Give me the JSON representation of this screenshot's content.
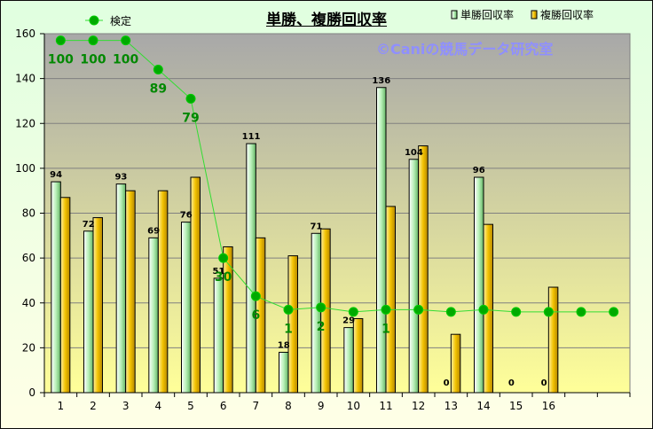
{
  "chart_data": {
    "type": "bar",
    "title": "単勝、複勝回収率",
    "watermark": "©Caniの競馬データ研究室",
    "categories": [
      "1",
      "2",
      "3",
      "4",
      "5",
      "6",
      "7",
      "8",
      "9",
      "10",
      "11",
      "12",
      "13",
      "14",
      "15",
      "16",
      "",
      ""
    ],
    "series": [
      {
        "name": "単勝回収率",
        "type": "bar",
        "color": "#b8f0b8",
        "values": [
          94,
          72,
          93,
          69,
          76,
          51,
          111,
          18,
          71,
          29,
          136,
          104,
          0,
          96,
          0,
          0,
          null,
          null
        ],
        "labels": [
          "94",
          "72",
          "93",
          "69",
          "76",
          "51",
          "111",
          "18",
          "71",
          "29",
          "136",
          "104",
          "0",
          "96",
          "0",
          "0",
          "",
          ""
        ]
      },
      {
        "name": "複勝回収率",
        "type": "bar",
        "color": "#f2c200",
        "values": [
          87,
          78,
          90,
          90,
          96,
          65,
          69,
          61,
          73,
          33,
          83,
          110,
          26,
          75,
          0,
          47,
          null,
          null
        ]
      },
      {
        "name": "検定",
        "type": "line",
        "color": "#009900",
        "values": [
          157,
          157,
          157,
          144,
          131,
          60,
          43,
          37,
          38,
          36,
          37,
          37,
          36,
          37,
          36,
          36,
          36,
          36
        ],
        "labels": [
          "100",
          "100",
          "100",
          "89",
          "79",
          "30",
          "6",
          "1",
          "2",
          "",
          "1",
          "",
          "",
          "",
          "",
          "",
          "",
          ""
        ]
      }
    ],
    "ylim": [
      0,
      160
    ],
    "yticks": [
      0,
      20,
      40,
      60,
      80,
      100,
      120,
      140,
      160
    ],
    "grid": true,
    "legend": "top"
  }
}
